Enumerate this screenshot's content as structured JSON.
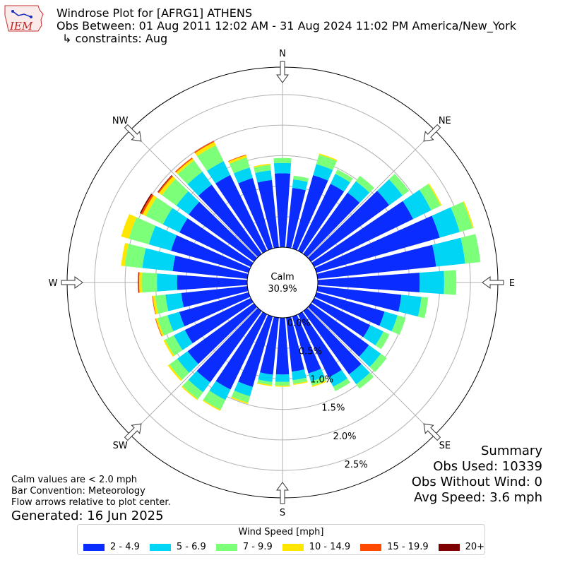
{
  "header": {
    "logo_text": "IEM",
    "title": "Windrose Plot for [AFRG1] ATHENS",
    "obs_between": "Obs Between: 01 Aug 2011 12:02 AM - 31 Aug 2024 11:02 PM America/New_York",
    "constraints": "↳ constraints: Aug"
  },
  "summary": {
    "title": "Summary",
    "obs_used": "Obs Used: 10339",
    "obs_without_wind": "Obs Without Wind: 0",
    "avg_speed": "Avg Speed: 3.6 mph"
  },
  "footnotes": {
    "calm_note": "Calm values are < 2.0 mph",
    "bar_convention": "Bar Convention: Meteorology",
    "flow_arrows": "Flow arrows relative to plot center.",
    "generated": "Generated: 16 Jun 2025"
  },
  "center": {
    "label": "Calm",
    "value": "30.9%"
  },
  "colors": {
    "axis": "#000000",
    "grid": "#b0b0b0"
  },
  "chart_data": {
    "type": "windrose",
    "radial_unit": "%",
    "radial_ticks": [
      "0.0%",
      "0.5%",
      "1.0%",
      "1.5%",
      "2.0%",
      "2.5%"
    ],
    "radial_tick_values": [
      0.0,
      0.5,
      1.0,
      1.5,
      2.0,
      2.5
    ],
    "r_max": 2.95,
    "calm_percent": 30.9,
    "compass_labels": [
      "N",
      "NE",
      "E",
      "SE",
      "S",
      "SW",
      "W",
      "NW"
    ],
    "legend_title": "Wind Speed [mph]",
    "speed_bins": [
      {
        "label": "2 - 4.9",
        "color": "#0a2cff"
      },
      {
        "label": "5 - 6.9",
        "color": "#00d5f5"
      },
      {
        "label": "7 - 9.9",
        "color": "#7cff79"
      },
      {
        "label": "10 - 14.9",
        "color": "#ffe600"
      },
      {
        "label": "15 - 19.9",
        "color": "#ff4a00"
      },
      {
        "label": "20+",
        "color": "#7f0000"
      }
    ],
    "direction_step_degrees": 10,
    "directions_deg": [
      0,
      10,
      20,
      30,
      40,
      50,
      60,
      70,
      80,
      90,
      100,
      110,
      120,
      130,
      140,
      150,
      160,
      170,
      180,
      190,
      200,
      210,
      220,
      230,
      240,
      250,
      260,
      270,
      280,
      290,
      300,
      310,
      320,
      330,
      340,
      350
    ],
    "cumulative_percent": [
      [
        1.21,
        1.38,
        1.46,
        1.46,
        1.46,
        1.46
      ],
      [
        0.98,
        1.12,
        1.18,
        1.18,
        1.18,
        1.18
      ],
      [
        1.25,
        1.44,
        1.6,
        1.62,
        1.62,
        1.62
      ],
      [
        1.22,
        1.4,
        1.48,
        1.48,
        1.48,
        1.48
      ],
      [
        1.24,
        1.47,
        1.58,
        1.58,
        1.58,
        1.58
      ],
      [
        1.58,
        1.85,
        1.98,
        1.98,
        1.98,
        1.98
      ],
      [
        1.8,
        2.13,
        2.3,
        2.32,
        2.32,
        2.32
      ],
      [
        2.1,
        2.44,
        2.66,
        2.68,
        2.68,
        2.68
      ],
      [
        1.95,
        2.43,
        2.68,
        2.68,
        2.68,
        2.68
      ],
      [
        1.67,
        2.07,
        2.27,
        2.27,
        2.27,
        2.27
      ],
      [
        1.38,
        1.71,
        1.82,
        1.82,
        1.82,
        1.82
      ],
      [
        1.16,
        1.38,
        1.52,
        1.52,
        1.52,
        1.52
      ],
      [
        1.02,
        1.26,
        1.37,
        1.37,
        1.37,
        1.37
      ],
      [
        1.17,
        1.41,
        1.53,
        1.53,
        1.53,
        1.53
      ],
      [
        1.28,
        1.48,
        1.57,
        1.57,
        1.57,
        1.57
      ],
      [
        1.15,
        1.32,
        1.4,
        1.4,
        1.4,
        1.4
      ],
      [
        0.97,
        1.11,
        1.18,
        1.2,
        1.2,
        1.2
      ],
      [
        0.89,
        1.03,
        1.09,
        1.11,
        1.11,
        1.11
      ],
      [
        0.93,
        1.05,
        1.11,
        1.13,
        1.13,
        1.13
      ],
      [
        0.94,
        1.06,
        1.11,
        1.13,
        1.13,
        1.13
      ],
      [
        1.2,
        1.36,
        1.47,
        1.49,
        1.49,
        1.49
      ],
      [
        1.37,
        1.56,
        1.74,
        1.76,
        1.76,
        1.76
      ],
      [
        1.44,
        1.64,
        1.78,
        1.8,
        1.8,
        1.8
      ],
      [
        1.34,
        1.55,
        1.71,
        1.74,
        1.74,
        1.74
      ],
      [
        1.2,
        1.4,
        1.56,
        1.59,
        1.59,
        1.59
      ],
      [
        1.18,
        1.38,
        1.55,
        1.58,
        1.59,
        1.59
      ],
      [
        1.09,
        1.35,
        1.52,
        1.56,
        1.57,
        1.57
      ],
      [
        1.15,
        1.48,
        1.73,
        1.77,
        1.78,
        1.79
      ],
      [
        1.23,
        1.73,
        2.02,
        2.08,
        2.08,
        2.08
      ],
      [
        1.32,
        1.7,
        2.04,
        2.17,
        2.17,
        2.17
      ],
      [
        1.3,
        1.6,
        1.91,
        1.97,
        2.0,
        2.02
      ],
      [
        1.32,
        1.57,
        1.86,
        1.92,
        1.94,
        1.95
      ],
      [
        1.4,
        1.66,
        1.89,
        1.93,
        1.95,
        1.95
      ],
      [
        1.38,
        1.63,
        1.92,
        1.98,
        2.0,
        2.0
      ],
      [
        1.2,
        1.38,
        1.55,
        1.59,
        1.6,
        1.6
      ],
      [
        1.11,
        1.27,
        1.36,
        1.38,
        1.38,
        1.38
      ]
    ]
  }
}
